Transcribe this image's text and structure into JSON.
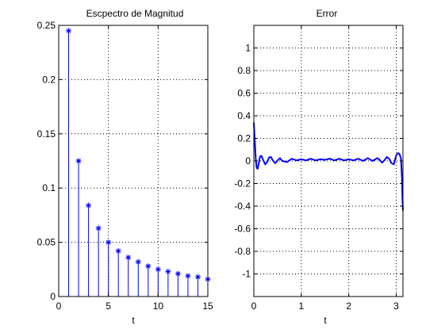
{
  "colors": {
    "background": "#ffffff",
    "axes": "#000000",
    "grid": "#000000",
    "series": "#0000ff"
  },
  "chart_data": [
    {
      "type": "stem",
      "title": "Escpectro de Magnitud",
      "xlabel": "t",
      "ylabel": "",
      "xlim": [
        0,
        15
      ],
      "ylim": [
        0,
        0.25
      ],
      "xticks": [
        0,
        5,
        10,
        15
      ],
      "xtick_labels": [
        "0",
        "5",
        "10",
        "15"
      ],
      "yticks": [
        0,
        0.05,
        0.1,
        0.15,
        0.2,
        0.25
      ],
      "ytick_labels": [
        "0",
        "0.05",
        "0.1",
        "0.15",
        "0.2",
        "0.25"
      ],
      "grid": true,
      "marker": "*",
      "color": "#0000ff",
      "x": [
        1,
        2,
        3,
        4,
        5,
        6,
        7,
        8,
        9,
        10,
        11,
        12,
        13,
        14,
        15
      ],
      "values": [
        0.245,
        0.125,
        0.084,
        0.063,
        0.05,
        0.042,
        0.036,
        0.032,
        0.028,
        0.025,
        0.023,
        0.021,
        0.019,
        0.018,
        0.016
      ]
    },
    {
      "type": "line",
      "title": "Error",
      "xlabel": "t",
      "ylabel": "",
      "xlim": [
        0,
        3.1416
      ],
      "ylim": [
        -1.2,
        1.2
      ],
      "xticks": [
        0,
        1,
        2,
        3
      ],
      "xtick_labels": [
        "0",
        "1",
        "2",
        "3"
      ],
      "yticks": [
        -1,
        -0.8,
        -0.6,
        -0.4,
        -0.2,
        0,
        0.2,
        0.4,
        0.6,
        0.8,
        1
      ],
      "ytick_labels": [
        "-1",
        "-0.8",
        "-0.6",
        "-0.4",
        "-0.2",
        "0",
        "0.2",
        "0.4",
        "0.6",
        "0.8",
        "1"
      ],
      "grid": true,
      "color": "#0000ff",
      "x": [
        0,
        0.02,
        0.04,
        0.06,
        0.08,
        0.1,
        0.13,
        0.16,
        0.2,
        0.24,
        0.28,
        0.32,
        0.36,
        0.4,
        0.45,
        0.5,
        0.55,
        0.6,
        0.7,
        0.8,
        0.9,
        1.0,
        1.1,
        1.2,
        1.3,
        1.4,
        1.5,
        1.6,
        1.7,
        1.8,
        1.9,
        2.0,
        2.1,
        2.2,
        2.3,
        2.4,
        2.5,
        2.6,
        2.65,
        2.7,
        2.75,
        2.8,
        2.85,
        2.9,
        2.95,
        3.0,
        3.04,
        3.07,
        3.1,
        3.12,
        3.13,
        3.1416
      ],
      "values": [
        0.34,
        0.18,
        0.02,
        -0.06,
        -0.07,
        -0.03,
        0.04,
        0.045,
        0.005,
        -0.03,
        -0.01,
        0.03,
        0.035,
        0.005,
        -0.02,
        0.005,
        0.025,
        0.0,
        -0.01,
        0.02,
        0.005,
        0.015,
        0.005,
        0.02,
        0.005,
        0.015,
        0.01,
        0.02,
        0.005,
        0.02,
        0.005,
        0.015,
        0.005,
        0.02,
        0.0,
        0.025,
        0.0,
        0.025,
        0.01,
        -0.015,
        0.005,
        0.035,
        0.02,
        -0.02,
        -0.03,
        0.05,
        0.07,
        0.06,
        0.02,
        -0.15,
        -0.32,
        -0.44
      ]
    }
  ]
}
